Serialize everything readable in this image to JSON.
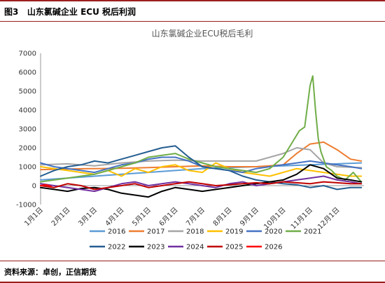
{
  "header": {
    "figure_label": "图3",
    "figure_title": "山东氯碱企业 ECU 税后利润"
  },
  "footer": {
    "source": "资料来源：卓创，正信期货"
  },
  "chart_data": {
    "type": "line",
    "title": "山东氯碱企业ECU税后毛利",
    "ylim": [
      -1000,
      7000
    ],
    "yticks": [
      "7000",
      "6000",
      "5000",
      "4000",
      "3000",
      "2000",
      "1000",
      "0",
      "-1000"
    ],
    "xticks": [
      "1月1日",
      "2月1日",
      "3月1日",
      "4月1日",
      "5月1日",
      "6月1日",
      "7月1日",
      "8月1日",
      "9月1日",
      "10月1日",
      "11月1日",
      "12月1日"
    ],
    "legend_placement": "bottom",
    "series": [
      {
        "name": "2016",
        "color": "#5b9bd5",
        "x": [
          0,
          1,
          2,
          3,
          4,
          5,
          6,
          7,
          8,
          9,
          10,
          11,
          11.9
        ],
        "values": [
          300,
          400,
          500,
          600,
          700,
          800,
          900,
          950,
          1000,
          1050,
          1100,
          1150,
          1200
        ]
      },
      {
        "name": "2017",
        "color": "#ed7d31",
        "x": [
          0,
          1,
          2,
          3,
          4,
          5,
          6,
          7,
          8,
          9,
          9.5,
          10,
          10.5,
          11,
          11.5,
          11.9
        ],
        "values": [
          850,
          880,
          900,
          920,
          950,
          1000,
          1050,
          1000,
          1000,
          1100,
          1700,
          2200,
          2300,
          1900,
          1400,
          1300
        ]
      },
      {
        "name": "2018",
        "color": "#a5a5a5",
        "x": [
          0,
          1,
          2,
          3,
          4,
          5,
          6,
          7,
          8,
          9,
          9.5,
          10,
          10.5,
          11,
          11.9
        ],
        "values": [
          1100,
          1150,
          1050,
          1200,
          1300,
          1350,
          1300,
          1300,
          1300,
          1700,
          2000,
          1900,
          1200,
          1000,
          950
        ]
      },
      {
        "name": "2019",
        "color": "#ffc000",
        "x": [
          0,
          0.5,
          1,
          1.5,
          2,
          2.5,
          3,
          3.5,
          4,
          4.5,
          5,
          5.5,
          6,
          6.5,
          7,
          7.5,
          8,
          8.5,
          9,
          9.5,
          10,
          10.5,
          11,
          11.5,
          11.9
        ],
        "values": [
          1000,
          900,
          800,
          700,
          600,
          800,
          500,
          900,
          700,
          1000,
          1100,
          800,
          700,
          1200,
          900,
          700,
          600,
          500,
          700,
          900,
          800,
          700,
          600,
          500,
          500
        ]
      },
      {
        "name": "2020",
        "color": "#4472c4",
        "x": [
          0,
          0.5,
          1,
          1.5,
          2,
          2.5,
          3,
          3.5,
          4,
          4.5,
          5,
          5.5,
          6,
          6.5,
          7,
          7.5,
          8,
          8.5,
          9,
          9.5,
          10,
          10.5,
          11,
          11.5,
          11.9
        ],
        "values": [
          1200,
          1000,
          900,
          800,
          700,
          900,
          1100,
          1200,
          1400,
          1500,
          1500,
          1300,
          1000,
          900,
          800,
          700,
          900,
          1000,
          1100,
          1200,
          1300,
          1200,
          1100,
          1000,
          900
        ]
      },
      {
        "name": "2021",
        "color": "#70ad47",
        "x": [
          0,
          0.5,
          1,
          1.5,
          2,
          2.5,
          3,
          3.5,
          4,
          4.5,
          5,
          5.5,
          6,
          6.5,
          7,
          7.5,
          8,
          8.5,
          9,
          9.3,
          9.6,
          9.8,
          10,
          10.1,
          10.2,
          10.3,
          10.4,
          10.5,
          10.6,
          10.8,
          11,
          11.3,
          11.6,
          11.9
        ],
        "values": [
          200,
          300,
          400,
          500,
          600,
          800,
          1000,
          1200,
          1500,
          1600,
          1700,
          1400,
          1200,
          1000,
          900,
          800,
          700,
          900,
          1500,
          2200,
          2900,
          3100,
          5300,
          5800,
          4000,
          2500,
          1800,
          1400,
          1000,
          800,
          500,
          300,
          700,
          200
        ]
      },
      {
        "name": "2022",
        "color": "#255e91",
        "x": [
          0,
          0.5,
          1,
          1.5,
          2,
          2.5,
          3,
          3.5,
          4,
          4.5,
          5,
          5.5,
          6,
          6.5,
          7,
          7.5,
          8,
          8.5,
          9,
          9.5,
          10,
          10.5,
          11,
          11.5,
          11.9
        ],
        "values": [
          500,
          800,
          1000,
          1100,
          1300,
          1200,
          1400,
          1600,
          1800,
          2000,
          2100,
          1500,
          1000,
          900,
          800,
          500,
          300,
          200,
          100,
          50,
          -100,
          0,
          -200,
          -100,
          -100
        ]
      },
      {
        "name": "2023",
        "color": "#000000",
        "x": [
          0,
          0.5,
          1,
          1.5,
          2,
          2.5,
          3,
          3.5,
          4,
          4.5,
          5,
          5.5,
          6,
          6.5,
          7,
          7.5,
          8,
          8.5,
          9,
          9.5,
          10,
          10.5,
          11,
          11.5,
          11.9
        ],
        "values": [
          -100,
          -200,
          -300,
          -150,
          -100,
          -200,
          -400,
          -500,
          -600,
          -300,
          -100,
          -200,
          -300,
          -200,
          -100,
          0,
          100,
          200,
          300,
          600,
          1100,
          900,
          400,
          300,
          200
        ]
      },
      {
        "name": "2024",
        "color": "#7030a0",
        "x": [
          0,
          0.5,
          1,
          1.5,
          2,
          2.5,
          3,
          3.5,
          4,
          4.5,
          5,
          5.5,
          6,
          6.5,
          7,
          7.5,
          8,
          8.5,
          9,
          9.5,
          10,
          10.5,
          11,
          11.5,
          11.9
        ],
        "values": [
          100,
          0,
          -100,
          -200,
          -300,
          -100,
          100,
          200,
          0,
          100,
          200,
          100,
          0,
          -100,
          100,
          200,
          0,
          100,
          200,
          300,
          400,
          500,
          300,
          200,
          100
        ]
      },
      {
        "name": "2025",
        "color": "#c00000",
        "x": [
          0,
          0.5,
          1,
          1.5,
          2,
          2.5,
          3,
          3.5,
          4,
          4.5,
          5,
          5.5,
          6,
          6.5,
          7,
          7.5,
          8,
          8.5,
          9,
          9.5,
          10,
          10.5,
          11,
          11.5,
          11.9
        ],
        "values": [
          0,
          -100,
          100,
          0,
          -200,
          -100,
          0,
          100,
          -100,
          0,
          100,
          200,
          100,
          0,
          50,
          100,
          150,
          100,
          200,
          150,
          100,
          200,
          150,
          100,
          100
        ]
      },
      {
        "name": "2026",
        "color": "#ff0000",
        "x": [
          0,
          0.2,
          0.4
        ],
        "values": [
          0,
          50,
          -50
        ]
      }
    ]
  }
}
